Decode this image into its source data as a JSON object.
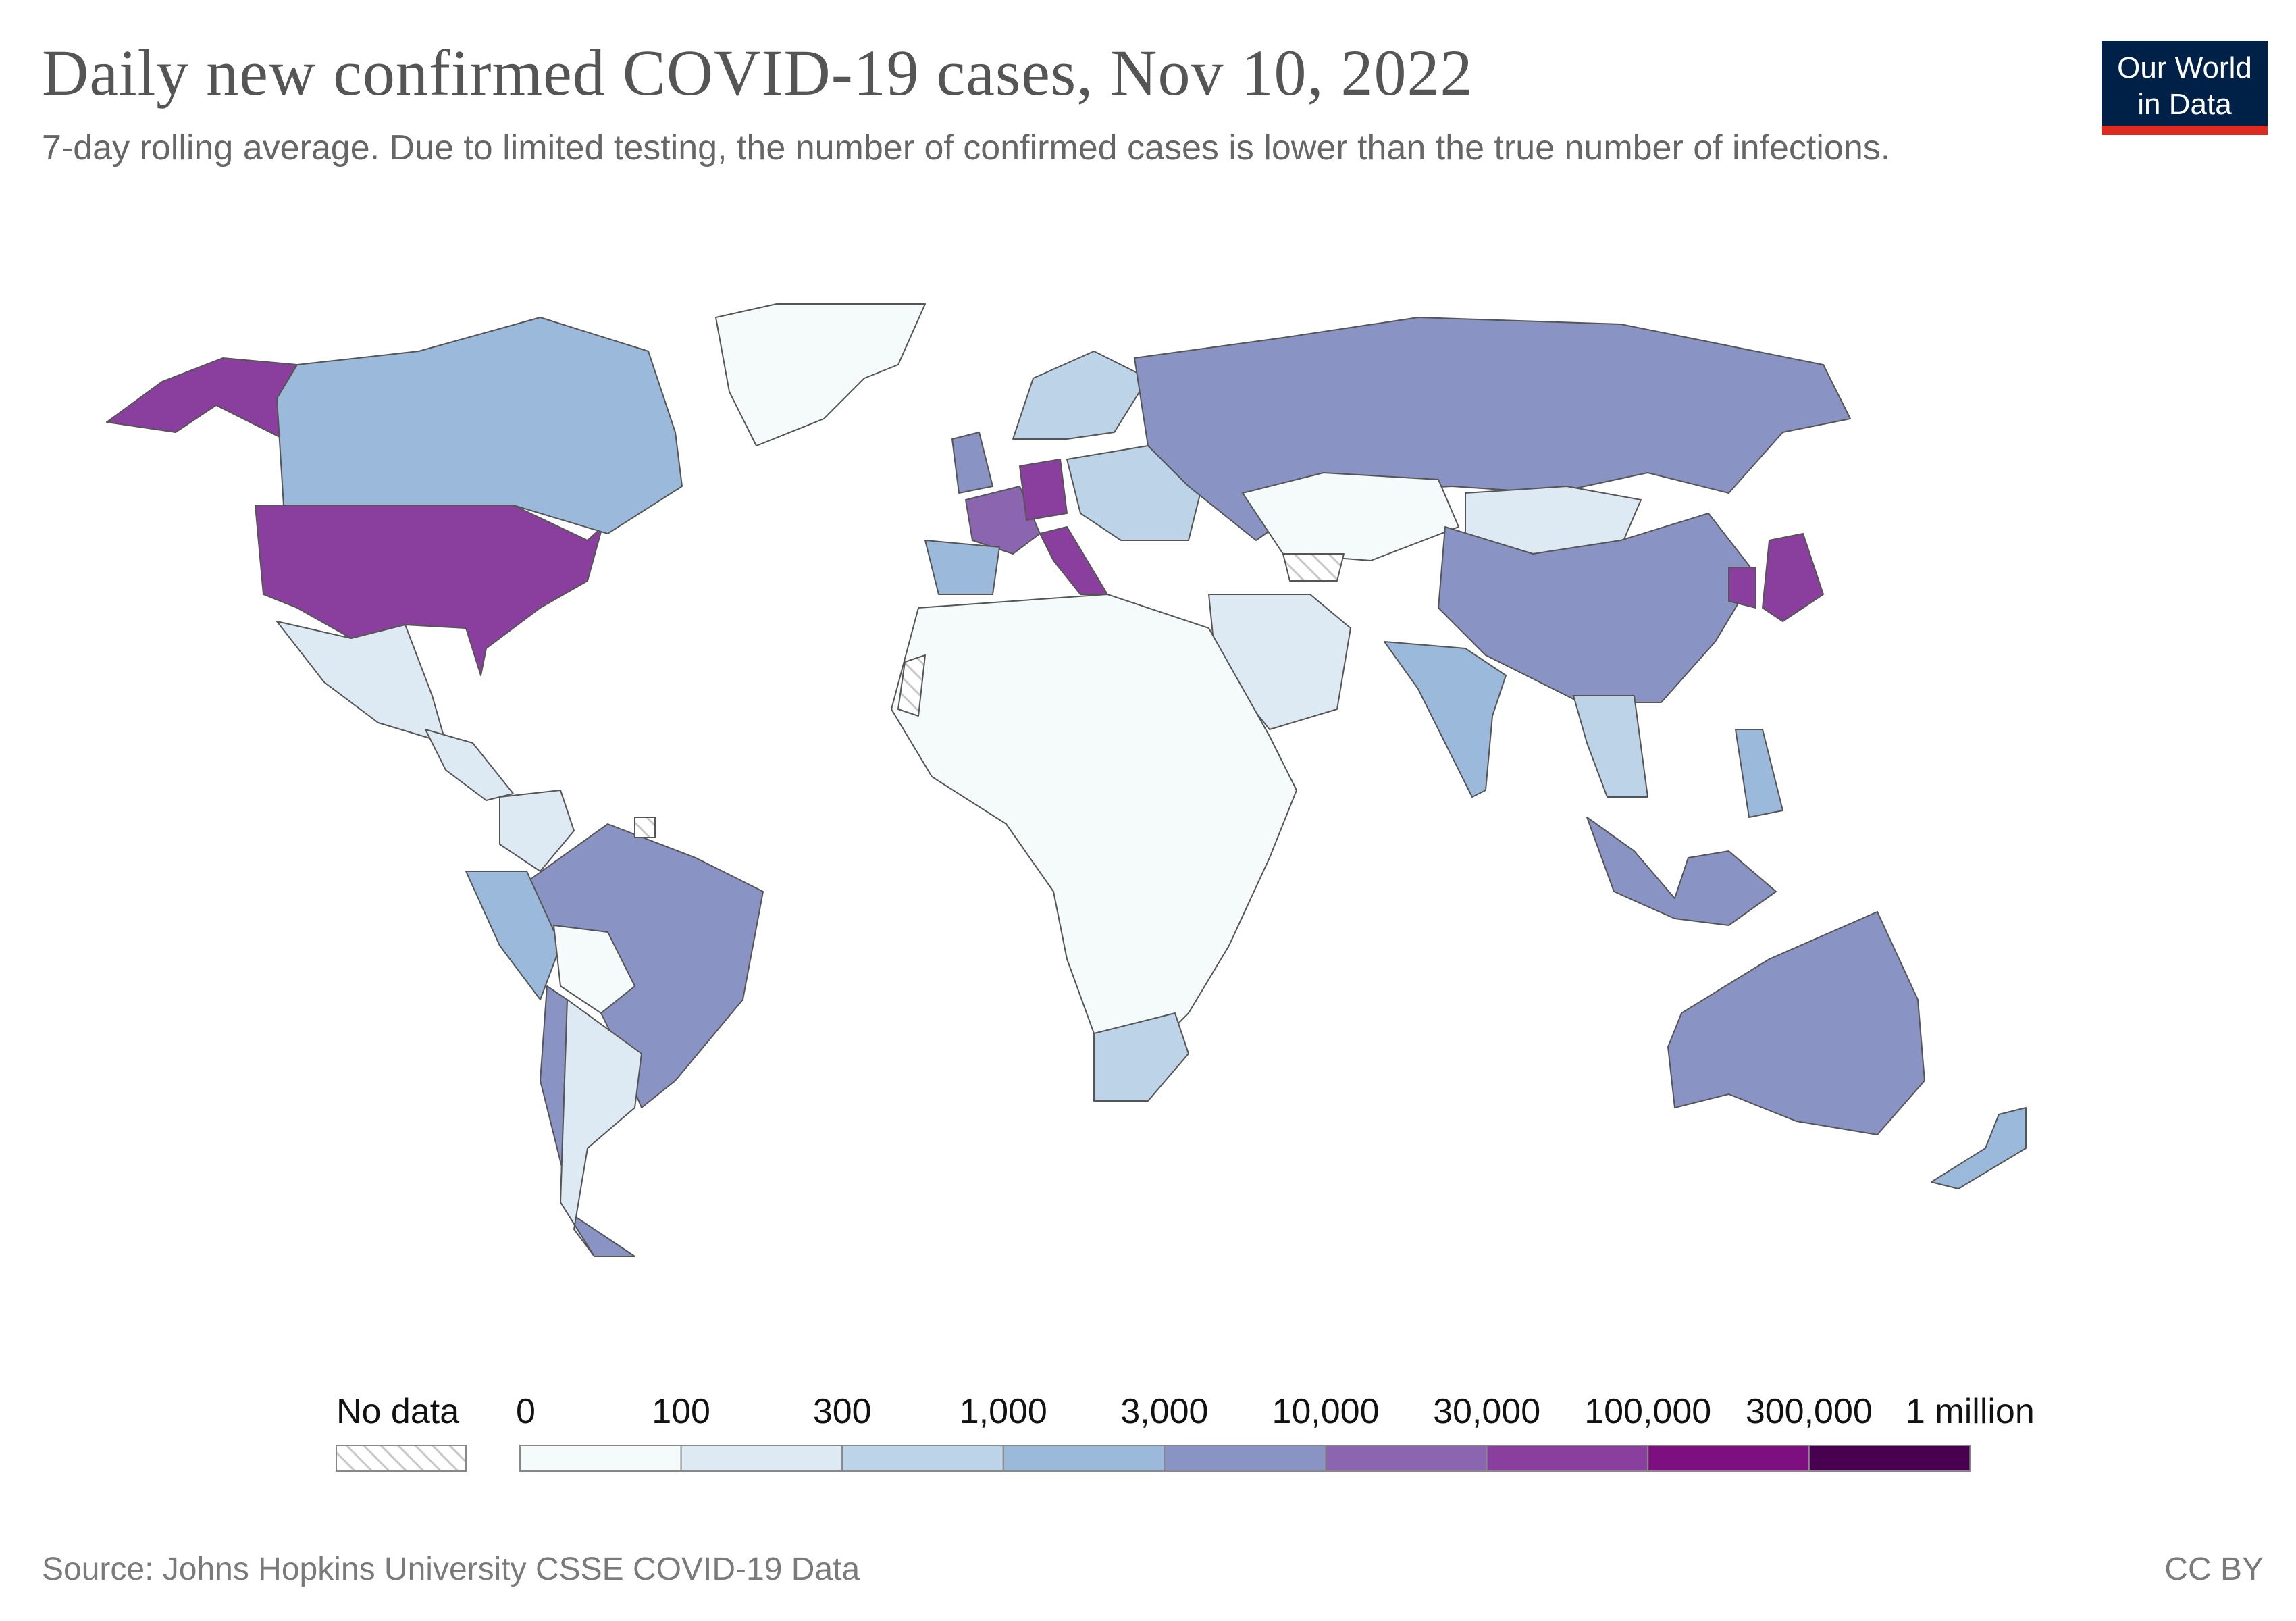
{
  "title": "Daily new confirmed COVID-19 cases, Nov 10, 2022",
  "subtitle": "7-day rolling average. Due to limited testing, the number of confirmed cases is lower than the true number of infections.",
  "logo": {
    "line1": "Our World",
    "line2": "in Data",
    "bg": "#002147",
    "accent": "#dc2c21"
  },
  "legend": {
    "no_data_label": "No data",
    "ticks": [
      "0",
      "100",
      "300",
      "1,000",
      "3,000",
      "10,000",
      "30,000",
      "100,000",
      "300,000",
      "1 million"
    ],
    "bins": [
      {
        "range": "0–100",
        "color": "#f5fafb"
      },
      {
        "range": "100–300",
        "color": "#ddeaf3"
      },
      {
        "range": "300–1,000",
        "color": "#bdd3e7"
      },
      {
        "range": "1,000–3,000",
        "color": "#9bbadb"
      },
      {
        "range": "3,000–10,000",
        "color": "#8994c5"
      },
      {
        "range": "10,000–30,000",
        "color": "#8c65b0"
      },
      {
        "range": "30,000–100,000",
        "color": "#8a3f9e"
      },
      {
        "range": "100,000–300,000",
        "color": "#7e0f80"
      },
      {
        "range": "300,000–1 million",
        "color": "#4a0050"
      }
    ]
  },
  "regions": [
    {
      "name": "United States",
      "bin": "30,000–100,000"
    },
    {
      "name": "Alaska",
      "bin": "30,000–100,000"
    },
    {
      "name": "Canada",
      "bin": "1,000–3,000"
    },
    {
      "name": "Greenland",
      "bin": "0–100"
    },
    {
      "name": "Mexico",
      "bin": "100–300"
    },
    {
      "name": "Central America",
      "bin": "100–300"
    },
    {
      "name": "Brazil",
      "bin": "3,000–10,000"
    },
    {
      "name": "Chile",
      "bin": "3,000–10,000"
    },
    {
      "name": "Argentina",
      "bin": "100–300"
    },
    {
      "name": "Peru",
      "bin": "1,000–3,000"
    },
    {
      "name": "Colombia",
      "bin": "100–300"
    },
    {
      "name": "Bolivia",
      "bin": "0–100"
    },
    {
      "name": "France",
      "bin": "10,000–30,000"
    },
    {
      "name": "Germany",
      "bin": "30,000–100,000"
    },
    {
      "name": "Italy",
      "bin": "30,000–100,000"
    },
    {
      "name": "Spain",
      "bin": "1,000–3,000"
    },
    {
      "name": "United Kingdom",
      "bin": "3,000–10,000"
    },
    {
      "name": "Scandinavia",
      "bin": "300–1,000"
    },
    {
      "name": "Eastern Europe",
      "bin": "300–1,000"
    },
    {
      "name": "Russia",
      "bin": "3,000–10,000"
    },
    {
      "name": "Kazakhstan",
      "bin": "0–100"
    },
    {
      "name": "Mongolia",
      "bin": "100–300"
    },
    {
      "name": "China",
      "bin": "3,000–10,000"
    },
    {
      "name": "South Korea",
      "bin": "30,000–100,000"
    },
    {
      "name": "Japan",
      "bin": "30,000–100,000"
    },
    {
      "name": "India",
      "bin": "1,000–3,000"
    },
    {
      "name": "Middle East",
      "bin": "100–300"
    },
    {
      "name": "Africa",
      "bin": "0–100"
    },
    {
      "name": "South Africa",
      "bin": "300–1,000"
    },
    {
      "name": "Southeast Asia",
      "bin": "300–1,000"
    },
    {
      "name": "Indonesia",
      "bin": "3,000–10,000"
    },
    {
      "name": "Philippines",
      "bin": "1,000–3,000"
    },
    {
      "name": "Australia",
      "bin": "3,000–10,000"
    },
    {
      "name": "New Zealand",
      "bin": "1,000–3,000"
    }
  ],
  "footer": {
    "source": "Source: Johns Hopkins University CSSE COVID-19 Data",
    "license": "CC BY"
  }
}
